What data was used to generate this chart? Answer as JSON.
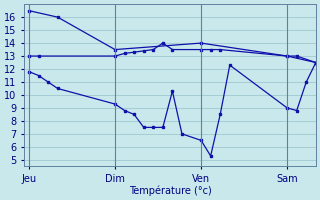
{
  "background_color": "#c8e8ec",
  "grid_color": "#a0c8d0",
  "line_color": "#1010aa",
  "xlabel": "Température (°c)",
  "x_tick_labels": [
    "Jeu",
    "Dim",
    "Ven",
    "Sam"
  ],
  "x_tick_positions": [
    0,
    9,
    18,
    27
  ],
  "xlim": [
    -0.5,
    30
  ],
  "ylim": [
    4.5,
    17.0
  ],
  "yticks": [
    5,
    6,
    7,
    8,
    9,
    10,
    11,
    12,
    13,
    14,
    15,
    16
  ],
  "vline_color": "#6080a0",
  "series": [
    {
      "x": [
        0,
        3,
        9,
        18,
        27,
        30
      ],
      "y": [
        16.5,
        16.0,
        13.5,
        14.0,
        13.0,
        12.5
      ]
    },
    {
      "x": [
        0,
        1,
        9,
        10,
        11,
        12,
        13,
        14,
        15,
        18,
        19,
        20,
        27,
        28,
        30
      ],
      "y": [
        13.0,
        13.0,
        13.0,
        13.2,
        13.3,
        13.4,
        13.5,
        14.0,
        13.5,
        13.5,
        13.5,
        13.5,
        13.0,
        13.0,
        12.5
      ]
    },
    {
      "x": [
        0,
        1,
        2,
        3,
        9,
        10,
        11,
        12,
        13,
        14,
        15,
        16,
        18,
        19,
        20,
        21,
        27,
        28,
        29,
        30
      ],
      "y": [
        11.8,
        11.5,
        11.0,
        10.5,
        9.3,
        8.8,
        8.5,
        7.5,
        7.5,
        7.5,
        10.3,
        7.0,
        6.5,
        5.3,
        8.5,
        12.3,
        9.0,
        8.8,
        11.0,
        12.5
      ]
    }
  ],
  "vlines": [
    0,
    9,
    18,
    27
  ],
  "figsize": [
    3.2,
    2.0
  ],
  "dpi": 100
}
